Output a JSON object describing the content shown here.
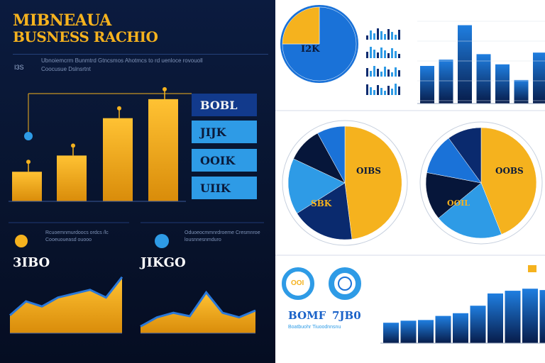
{
  "header": {
    "title_line1": "MIBNEAUA",
    "title_line2": "BUSNESS RACHIO",
    "tag": "I3S",
    "subtext": "Ubnoiemcrm Bunmtrd Gtncsmos Ahotmcs to rd  uenloce  rovouoll Coocusue Dslnsrtnt"
  },
  "stat_boxes": [
    "BOBL",
    "JIJK",
    "OOIK",
    "UIIK"
  ],
  "colors": {
    "gold": "#f5b21e",
    "navy": "#0b1b3f",
    "blue": "#1a72d8",
    "light_blue": "#2e9be6",
    "dark_blue": "#0a2a6e"
  },
  "bottom_left": {
    "num1": "3IBO",
    "num2": "JIKGO",
    "text1": "Rcuoemnmurdoocs ordcs  /lc Cooeuoueasd ouooo",
    "text2": "Oduoeocmmnrdroeme Cresmnroe lousnnesnmduro"
  },
  "right_panel": {
    "pie1_label": "I2K",
    "pie2_label": "OIBS",
    "pie2_sublabel": "SBK",
    "pie3_label": "OOBS",
    "pie3_sublabel": "OOIL",
    "badge": "OOI",
    "num1": "BOMF",
    "num2": "7JB0",
    "legend_text": "Boatbuohr  Tiuoodnnsnu"
  },
  "chart_data": [
    {
      "type": "bar",
      "categories": [
        "",
        "",
        "",
        ""
      ],
      "values": [
        42,
        65,
        118,
        145
      ],
      "ylim": [
        0,
        170
      ],
      "color": "#f5b21e",
      "grid": false
    },
    {
      "type": "area",
      "x": [
        0,
        1,
        2,
        3,
        4,
        5,
        6,
        7
      ],
      "y": [
        28,
        50,
        42,
        56,
        62,
        68,
        56,
        88
      ],
      "ylim": [
        0,
        100
      ],
      "color": "#f5b21e"
    },
    {
      "type": "area",
      "x": [
        0,
        1,
        2,
        3,
        4,
        5,
        6,
        7
      ],
      "y": [
        12,
        28,
        36,
        30,
        72,
        36,
        28,
        40
      ],
      "ylim": [
        0,
        100
      ],
      "color": "#f5b21e"
    },
    {
      "type": "pie",
      "labels": [
        "",
        ""
      ],
      "values": [
        75,
        25
      ],
      "colors": [
        "#1a72d8",
        "#f5b21e"
      ]
    },
    {
      "type": "bar",
      "categories": [
        "",
        "",
        "",
        "",
        "",
        "",
        "",
        ""
      ],
      "values": [
        48,
        56,
        100,
        63,
        50,
        30,
        65,
        75
      ],
      "ylim": [
        0,
        105
      ],
      "color": "#1a72d8"
    },
    {
      "type": "pie",
      "labels": [
        "",
        "",
        "",
        "",
        ""
      ],
      "values": [
        48,
        18,
        16,
        10,
        8
      ],
      "colors": [
        "#f5b21e",
        "#0a2a6e",
        "#2e9be6",
        "#06163a",
        "#1a72d8"
      ]
    },
    {
      "type": "pie",
      "labels": [
        "",
        "",
        "",
        "",
        ""
      ],
      "values": [
        44,
        20,
        14,
        12,
        10
      ],
      "colors": [
        "#f5b21e",
        "#2e9be6",
        "#06163a",
        "#1a72d8",
        "#0a2a6e"
      ]
    },
    {
      "type": "bar",
      "categories": [
        "",
        "",
        "",
        "",
        "",
        "",
        "",
        "",
        "",
        ""
      ],
      "values": [
        30,
        33,
        34,
        40,
        44,
        55,
        73,
        77,
        80,
        78
      ],
      "ylim": [
        0,
        100
      ],
      "color": "#1a72d8"
    }
  ]
}
